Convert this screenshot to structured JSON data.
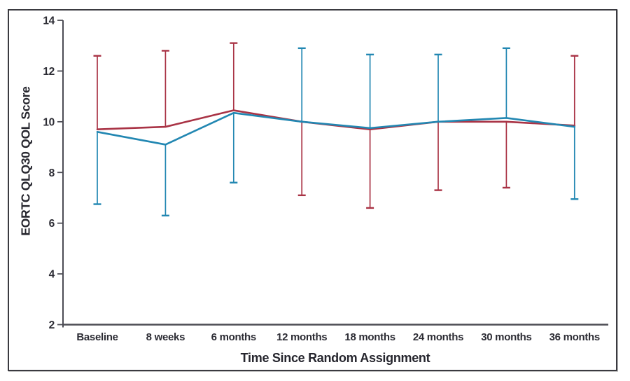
{
  "figure": {
    "kind": "clinical-trial-quality-of-life-figure"
  },
  "chart_data": {
    "type": "line",
    "title": "",
    "xlabel": "Time Since Random Assignment",
    "ylabel": "EORTC QLQ30 QOL Score",
    "categories": [
      "Baseline",
      "8 weeks",
      "6 months",
      "12 months",
      "18 months",
      "24 months",
      "30 months",
      "36 months"
    ],
    "ylim": [
      2,
      14
    ],
    "yticks": [
      2,
      4,
      6,
      8,
      10,
      12,
      14
    ],
    "grid": false,
    "legend_position": "none",
    "error_bars": "one-sided, alternating direction per arm",
    "series": [
      {
        "name": "arm-red",
        "color": "#a93345",
        "values": [
          9.7,
          9.8,
          10.45,
          10.0,
          9.7,
          10.0,
          10.0,
          9.85
        ],
        "err_upper_cap": [
          12.6,
          12.8,
          13.1,
          null,
          null,
          null,
          null,
          12.6
        ],
        "err_lower_cap": [
          null,
          null,
          null,
          7.1,
          6.6,
          7.3,
          7.4,
          null
        ]
      },
      {
        "name": "arm-blue",
        "color": "#2287b2",
        "values": [
          9.6,
          9.1,
          10.35,
          10.0,
          9.75,
          10.0,
          10.15,
          9.8
        ],
        "err_upper_cap": [
          null,
          null,
          null,
          12.9,
          12.65,
          12.65,
          12.9,
          null
        ],
        "err_lower_cap": [
          6.75,
          6.3,
          7.6,
          null,
          null,
          null,
          null,
          6.95
        ]
      }
    ]
  },
  "colors": {
    "axis": "#4c4c54",
    "tick_label": "#2c2c34",
    "frame_border": "#3a3a40"
  }
}
